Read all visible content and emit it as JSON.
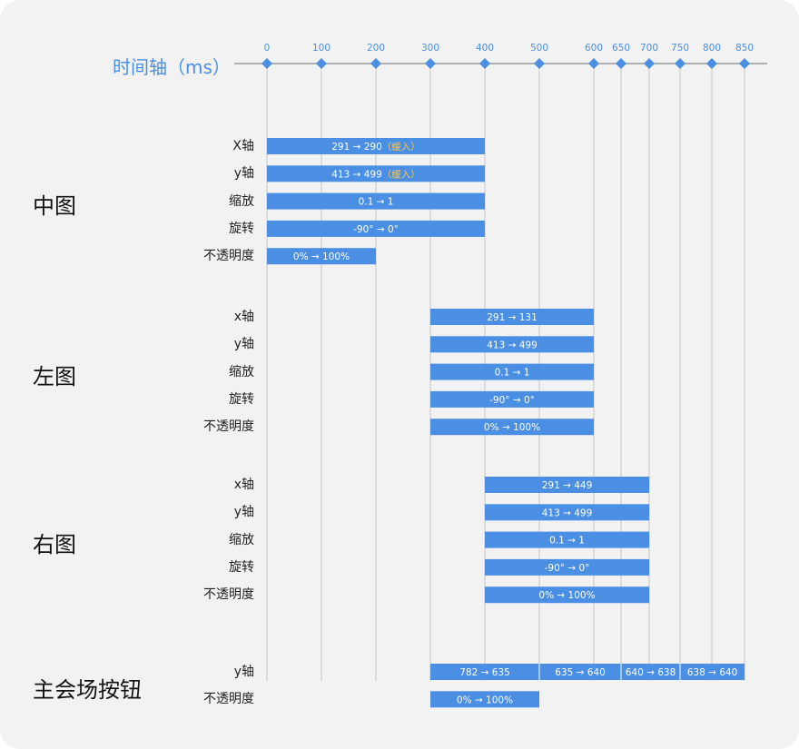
{
  "colors": {
    "accent": "#4a8fe3",
    "bar": "#4a8fe3",
    "bar_text": "#ffffff",
    "ease_text": "#f5c65b",
    "axis_line": "#9a9a9a",
    "grid_line": "#c6c6c6",
    "background": "#f2f2f2"
  },
  "timeline": {
    "title": "时间轴（ms）",
    "ticks": [
      0,
      100,
      200,
      300,
      400,
      500,
      600,
      650,
      700,
      750,
      800,
      850
    ]
  },
  "groups": [
    {
      "name": "中图",
      "rows": [
        {
          "label": "X轴",
          "segments": [
            {
              "start": 0,
              "end": 400,
              "text": "291 → 290",
              "note": "（缓入）"
            }
          ]
        },
        {
          "label": "y轴",
          "segments": [
            {
              "start": 0,
              "end": 400,
              "text": "413 → 499",
              "note": "（缓入）"
            }
          ]
        },
        {
          "label": "缩放",
          "segments": [
            {
              "start": 0,
              "end": 400,
              "text": "0.1 → 1"
            }
          ]
        },
        {
          "label": "旋转",
          "segments": [
            {
              "start": 0,
              "end": 400,
              "text": "-90° → 0°"
            }
          ]
        },
        {
          "label": "不透明度",
          "segments": [
            {
              "start": 0,
              "end": 200,
              "text": "0% → 100%"
            }
          ]
        }
      ]
    },
    {
      "name": "左图",
      "rows": [
        {
          "label": "x轴",
          "segments": [
            {
              "start": 300,
              "end": 600,
              "text": "291 → 131"
            }
          ]
        },
        {
          "label": "y轴",
          "segments": [
            {
              "start": 300,
              "end": 600,
              "text": "413 → 499"
            }
          ]
        },
        {
          "label": "缩放",
          "segments": [
            {
              "start": 300,
              "end": 600,
              "text": "0.1 → 1"
            }
          ]
        },
        {
          "label": "旋转",
          "segments": [
            {
              "start": 300,
              "end": 600,
              "text": "-90° → 0°"
            }
          ]
        },
        {
          "label": "不透明度",
          "segments": [
            {
              "start": 300,
              "end": 600,
              "text": "0% → 100%"
            }
          ]
        }
      ]
    },
    {
      "name": "右图",
      "rows": [
        {
          "label": "x轴",
          "segments": [
            {
              "start": 400,
              "end": 700,
              "text": "291 → 449"
            }
          ]
        },
        {
          "label": "y轴",
          "segments": [
            {
              "start": 400,
              "end": 700,
              "text": "413 → 499"
            }
          ]
        },
        {
          "label": "缩放",
          "segments": [
            {
              "start": 400,
              "end": 700,
              "text": "0.1 → 1"
            }
          ]
        },
        {
          "label": "旋转",
          "segments": [
            {
              "start": 400,
              "end": 700,
              "text": "-90° → 0°"
            }
          ]
        },
        {
          "label": "不透明度",
          "segments": [
            {
              "start": 400,
              "end": 700,
              "text": "0% → 100%"
            }
          ]
        }
      ]
    },
    {
      "name": "主会场按钮",
      "rows": [
        {
          "label": "y轴",
          "segments": [
            {
              "start": 300,
              "end": 500,
              "text": "782 → 635"
            },
            {
              "start": 500,
              "end": 650,
              "text": "635 → 640"
            },
            {
              "start": 650,
              "end": 750,
              "text": "640 → 638"
            },
            {
              "start": 750,
              "end": 850,
              "text": "638 → 640"
            }
          ]
        },
        {
          "label": "不透明度",
          "segments": [
            {
              "start": 300,
              "end": 500,
              "text": "0% → 100%"
            }
          ]
        }
      ]
    }
  ]
}
